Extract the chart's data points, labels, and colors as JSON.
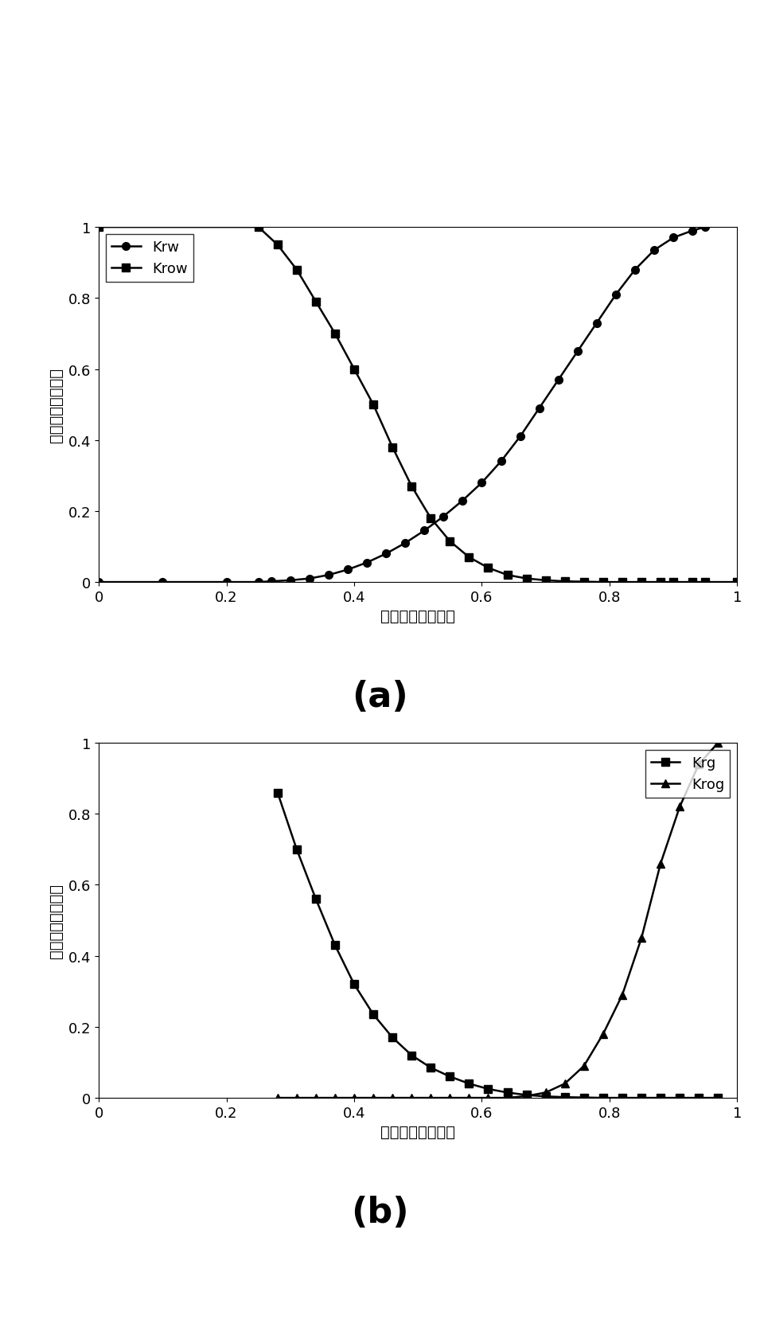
{
  "fig_width": 9.55,
  "fig_height": 16.83,
  "panel_a": {
    "xlabel": "含水饱和度，小数",
    "ylabel": "相对渗透率，小数",
    "caption": "(a)",
    "xlim": [
      0,
      1
    ],
    "ylim": [
      0,
      1
    ],
    "xticks": [
      0,
      0.2,
      0.4,
      0.6,
      0.8,
      1.0
    ],
    "yticks": [
      0,
      0.2,
      0.4,
      0.6,
      0.8,
      1.0
    ],
    "krw_x": [
      0.0,
      0.1,
      0.2,
      0.25,
      0.27,
      0.3,
      0.33,
      0.36,
      0.39,
      0.42,
      0.45,
      0.48,
      0.51,
      0.54,
      0.57,
      0.6,
      0.63,
      0.66,
      0.69,
      0.72,
      0.75,
      0.78,
      0.81,
      0.84,
      0.87,
      0.9,
      0.93,
      0.95
    ],
    "krw_y": [
      0.0,
      0.0,
      0.0,
      0.0,
      0.002,
      0.005,
      0.01,
      0.02,
      0.035,
      0.055,
      0.08,
      0.11,
      0.145,
      0.185,
      0.23,
      0.28,
      0.34,
      0.41,
      0.49,
      0.57,
      0.65,
      0.73,
      0.81,
      0.88,
      0.935,
      0.97,
      0.99,
      1.0
    ],
    "krow_x": [
      0.0,
      0.25,
      0.28,
      0.31,
      0.34,
      0.37,
      0.4,
      0.43,
      0.46,
      0.49,
      0.52,
      0.55,
      0.58,
      0.61,
      0.64,
      0.67,
      0.7,
      0.73,
      0.76,
      0.79,
      0.82,
      0.85,
      0.88,
      0.9,
      0.93,
      0.95,
      1.0
    ],
    "krow_y": [
      1.0,
      1.0,
      0.95,
      0.88,
      0.79,
      0.7,
      0.6,
      0.5,
      0.38,
      0.27,
      0.18,
      0.115,
      0.07,
      0.04,
      0.02,
      0.01,
      0.005,
      0.002,
      0.001,
      0.0,
      0.0,
      0.0,
      0.0,
      0.0,
      0.0,
      0.0,
      0.0
    ],
    "krw_label": "Krw",
    "krow_label": "Krow"
  },
  "panel_b": {
    "xlabel": "液相饱和度，小数",
    "ylabel": "相对渗透率，小数",
    "caption": "(b)",
    "xlim": [
      0,
      1
    ],
    "ylim": [
      0,
      1
    ],
    "xticks": [
      0,
      0.2,
      0.4,
      0.6,
      0.8,
      1.0
    ],
    "yticks": [
      0,
      0.2,
      0.4,
      0.6,
      0.8,
      1.0
    ],
    "krg_x": [
      0.28,
      0.31,
      0.34,
      0.37,
      0.4,
      0.43,
      0.46,
      0.49,
      0.52,
      0.55,
      0.58,
      0.61,
      0.64,
      0.67,
      0.7,
      0.73,
      0.76,
      0.79,
      0.82,
      0.85,
      0.88,
      0.91,
      0.94,
      0.97
    ],
    "krg_y": [
      0.86,
      0.7,
      0.56,
      0.43,
      0.32,
      0.235,
      0.17,
      0.12,
      0.085,
      0.06,
      0.04,
      0.025,
      0.015,
      0.008,
      0.004,
      0.002,
      0.001,
      0.0,
      0.0,
      0.0,
      0.0,
      0.0,
      0.0,
      0.0
    ],
    "krog_x": [
      0.28,
      0.31,
      0.34,
      0.37,
      0.4,
      0.43,
      0.46,
      0.49,
      0.52,
      0.55,
      0.58,
      0.61,
      0.64,
      0.67,
      0.7,
      0.73,
      0.76,
      0.79,
      0.82,
      0.85,
      0.88,
      0.91,
      0.94,
      0.97
    ],
    "krog_y": [
      0.0,
      0.0,
      0.0,
      0.0,
      0.0,
      0.0,
      0.0,
      0.0,
      0.0,
      0.0,
      0.0,
      0.0,
      0.0,
      0.005,
      0.015,
      0.04,
      0.09,
      0.18,
      0.29,
      0.45,
      0.66,
      0.82,
      0.94,
      1.0
    ],
    "krg_label": "Krg",
    "krog_label": "Krog"
  },
  "line_color": "#000000",
  "font_size_label": 14,
  "font_size_tick": 13,
  "font_size_legend": 13,
  "font_size_caption": 32,
  "line_width": 1.8,
  "marker_size": 7
}
